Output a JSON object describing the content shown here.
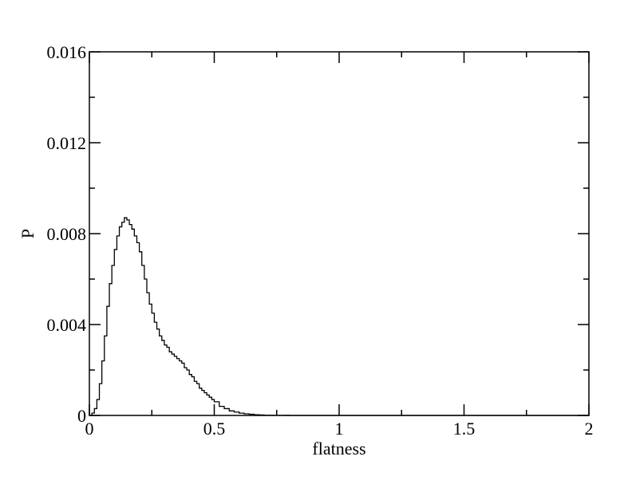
{
  "chart_data": {
    "type": "line",
    "title": "",
    "xlabel": "flatness",
    "ylabel": "P",
    "xlim": [
      0,
      2
    ],
    "ylim": [
      0,
      0.016
    ],
    "grid": false,
    "legend": "none",
    "x_ticks": [
      {
        "value": 0,
        "label": "0"
      },
      {
        "value": 0.5,
        "label": "0.5"
      },
      {
        "value": 1,
        "label": "1"
      },
      {
        "value": 1.5,
        "label": "1.5"
      },
      {
        "value": 2,
        "label": "2"
      }
    ],
    "y_ticks": [
      {
        "value": 0,
        "label": "0"
      },
      {
        "value": 0.004,
        "label": "0.004"
      },
      {
        "value": 0.008,
        "label": "0.008"
      },
      {
        "value": 0.012,
        "label": "0.012"
      },
      {
        "value": 0.016,
        "label": "0.016"
      }
    ],
    "series": [
      {
        "color": "#000000",
        "x": [
          0,
          0.01,
          0.02,
          0.03,
          0.04,
          0.05,
          0.06,
          0.07,
          0.08,
          0.09,
          0.1,
          0.11,
          0.12,
          0.13,
          0.14,
          0.15,
          0.16,
          0.17,
          0.18,
          0.19,
          0.2,
          0.21,
          0.22,
          0.23,
          0.24,
          0.25,
          0.26,
          0.27,
          0.28,
          0.29,
          0.3,
          0.31,
          0.32,
          0.33,
          0.34,
          0.35,
          0.36,
          0.37,
          0.38,
          0.39,
          0.4,
          0.41,
          0.42,
          0.43,
          0.44,
          0.45,
          0.46,
          0.47,
          0.48,
          0.49,
          0.5,
          0.52,
          0.54,
          0.56,
          0.58,
          0.6,
          0.62,
          0.64,
          0.66,
          0.68,
          0.7,
          0.72,
          0.74,
          0.76,
          0.78,
          0.8,
          0.85,
          0.9,
          1.0,
          1.2,
          1.5,
          2.0
        ],
        "y": [
          0,
          0.0001,
          0.0003,
          0.0007,
          0.0014,
          0.0024,
          0.0035,
          0.0048,
          0.0058,
          0.0066,
          0.0073,
          0.0079,
          0.0083,
          0.0085,
          0.0087,
          0.0086,
          0.0084,
          0.0082,
          0.0079,
          0.0076,
          0.0072,
          0.0066,
          0.006,
          0.0054,
          0.0049,
          0.0045,
          0.0041,
          0.0038,
          0.0035,
          0.0033,
          0.0031,
          0.003,
          0.0028,
          0.0027,
          0.0026,
          0.0025,
          0.0024,
          0.0023,
          0.0021,
          0.002,
          0.0018,
          0.0017,
          0.0015,
          0.0014,
          0.0012,
          0.0011,
          0.001,
          0.0009,
          0.0008,
          0.0007,
          0.0006,
          0.0004,
          0.0003,
          0.0002,
          0.00015,
          0.0001,
          7e-05,
          5e-05,
          3e-05,
          2e-05,
          1e-05,
          7e-06,
          5e-06,
          3e-06,
          2e-06,
          1e-06,
          0,
          0,
          0,
          0,
          0,
          0
        ]
      }
    ]
  }
}
